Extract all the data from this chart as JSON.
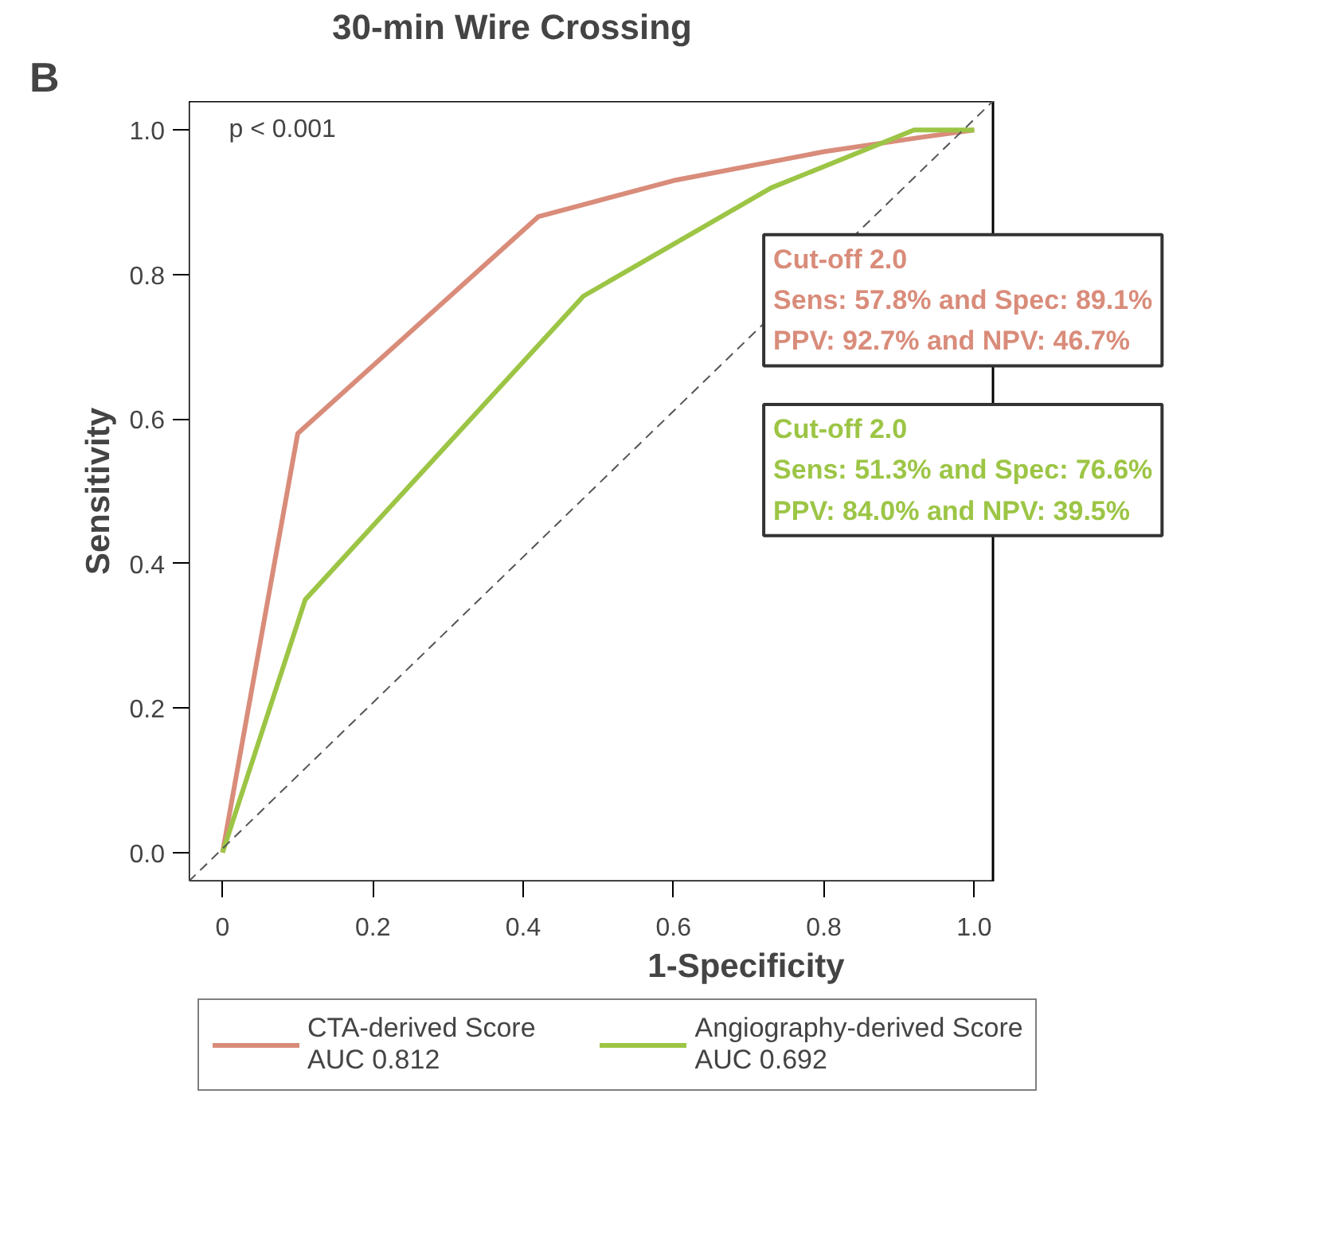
{
  "chart_data": {
    "type": "line",
    "title": "30-min Wire Crossing",
    "xlabel": "1-Specificity",
    "ylabel": "Sensitivity",
    "xlim": [
      -0.045,
      1.025
    ],
    "ylim": [
      -0.04,
      1.04
    ],
    "xticks": [
      {
        "value": 0,
        "label": "0"
      },
      0.2,
      0.4,
      0.6,
      0.8,
      {
        "value": 1,
        "label": "1.0"
      }
    ],
    "yticks": [
      {
        "value": 0,
        "label": "0.0"
      },
      0.2,
      0.4,
      0.6,
      0.8,
      {
        "value": 1,
        "label": "1.0"
      }
    ],
    "grid": false,
    "legend": "bottom",
    "line_style": "solid",
    "marker": "none",
    "series": [
      {
        "name": "CTA-derived Score\nAUC 0.812",
        "color": "#d98c7a",
        "x": [
          0,
          0.1,
          0.42,
          0.6,
          0.8,
          0.93,
          1.0
        ],
        "values": [
          0,
          0.58,
          0.88,
          0.93,
          0.97,
          0.99,
          1.0
        ]
      },
      {
        "name": "Angiography-derived Score\nAUC 0.692",
        "color": "#9cc545",
        "x": [
          0,
          0.11,
          0.48,
          0.73,
          0.92,
          1.0
        ],
        "values": [
          0,
          0.35,
          0.77,
          0.92,
          1.0,
          1.0
        ]
      },
      {
        "color": "#555555",
        "line_style": "dashed",
        "x": [
          -0.045,
          1.025
        ],
        "values": [
          -0.04,
          1.04
        ]
      }
    ],
    "annotations": [
      "B",
      "p < 0.001",
      "Cut-off 2.0\nSens: 57.8% and Spec: 89.1%\nPPV: 92.7% and NPV: 46.7%",
      "Cut-off 2.0\nSens: 51.3% and Spec: 76.6%\nPPV: 84.0% and NPV: 39.5%"
    ]
  }
}
